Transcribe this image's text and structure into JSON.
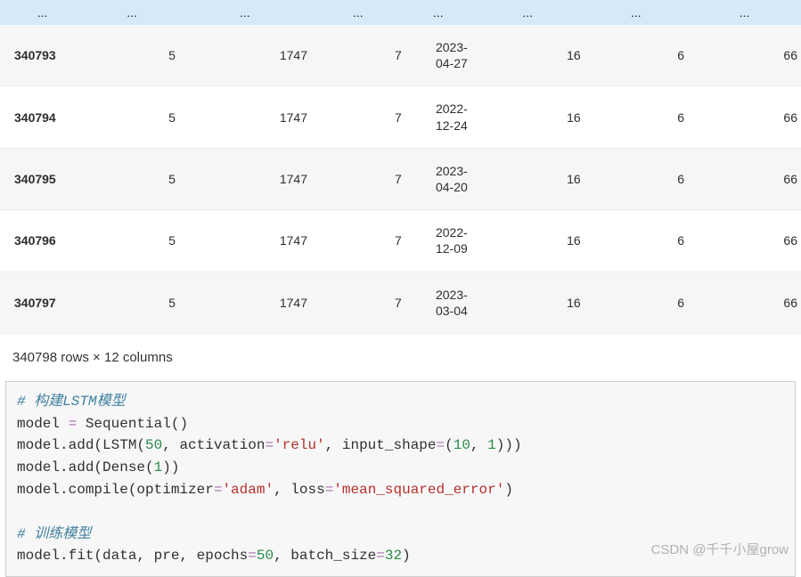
{
  "table": {
    "ellipsis": "...",
    "rows": [
      {
        "idx": "340793",
        "c1": "5",
        "c2": "1747",
        "c3": "7",
        "date_l1": "2023-",
        "date_l2": "04-27",
        "c5": "16",
        "c6": "6",
        "c7": "66"
      },
      {
        "idx": "340794",
        "c1": "5",
        "c2": "1747",
        "c3": "7",
        "date_l1": "2022-",
        "date_l2": "12-24",
        "c5": "16",
        "c6": "6",
        "c7": "66"
      },
      {
        "idx": "340795",
        "c1": "5",
        "c2": "1747",
        "c3": "7",
        "date_l1": "2023-",
        "date_l2": "04-20",
        "c5": "16",
        "c6": "6",
        "c7": "66"
      },
      {
        "idx": "340796",
        "c1": "5",
        "c2": "1747",
        "c3": "7",
        "date_l1": "2022-",
        "date_l2": "12-09",
        "c5": "16",
        "c6": "6",
        "c7": "66"
      },
      {
        "idx": "340797",
        "c1": "5",
        "c2": "1747",
        "c3": "7",
        "date_l1": "2023-",
        "date_l2": "03-04",
        "c5": "16",
        "c6": "6",
        "c7": "66"
      }
    ],
    "summary": "340798 rows × 12 columns"
  },
  "code": {
    "comment1": "# 构建LSTM模型",
    "line2_a": "model ",
    "line2_op": "=",
    "line2_b": " Sequential()",
    "line3_a": "model.add(LSTM(",
    "line3_n1": "50",
    "line3_b": ", activation",
    "line3_op": "=",
    "line3_s1": "'relu'",
    "line3_c": ", input_shape",
    "line3_op2": "=",
    "line3_d": "(",
    "line3_n2": "10",
    "line3_e": ", ",
    "line3_n3": "1",
    "line3_f": ")))",
    "line4_a": "model.add(Dense(",
    "line4_n1": "1",
    "line4_b": "))",
    "line5_a": "model.compile(optimizer",
    "line5_op": "=",
    "line5_s1": "'adam'",
    "line5_b": ", loss",
    "line5_op2": "=",
    "line5_s2": "'mean_squared_error'",
    "line5_c": ")",
    "comment2": "# 训练模型",
    "line7_a": "model.fit(data, pre, epochs",
    "line7_op": "=",
    "line7_n1": "50",
    "line7_b": ", batch_size",
    "line7_op2": "=",
    "line7_n2": "32",
    "line7_c": ")"
  },
  "watermark": "CSDN @千千小屋grow",
  "style": {
    "ellipsis_bg": "#d6e9f8",
    "row_alt_bg": "#f6f6f6",
    "code_bg": "#f7f7f7",
    "code_border": "#cfcfcf",
    "comment_color": "#3f7f9f",
    "operator_color": "#a96fb0",
    "number_color": "#2a8a46",
    "string_color": "#b5302c",
    "text_color": "#303030"
  }
}
